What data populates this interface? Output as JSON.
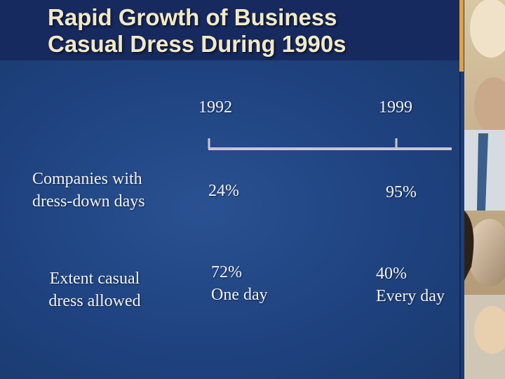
{
  "slide": {
    "title": "Rapid Growth of Business\nCasual Dress During 1990s"
  },
  "timeline": {
    "years": [
      "1992",
      "1999"
    ]
  },
  "rows": [
    {
      "label": "Companies with\ndress-down days",
      "value_1992": "24%",
      "value_1999": "95%"
    },
    {
      "label": "Extent casual\ndress allowed",
      "value_1992": "72%\nOne day",
      "value_1999": "40%\nEvery day"
    }
  ],
  "colors": {
    "background": "#1f4380",
    "title_bar": "#172a60",
    "title_text": "#f2e9c6",
    "accent": "#e3a23c",
    "timeline_line": "#c9c9c9"
  },
  "decor": {
    "photo_panel": "photo-collage-of-smiling-people"
  }
}
